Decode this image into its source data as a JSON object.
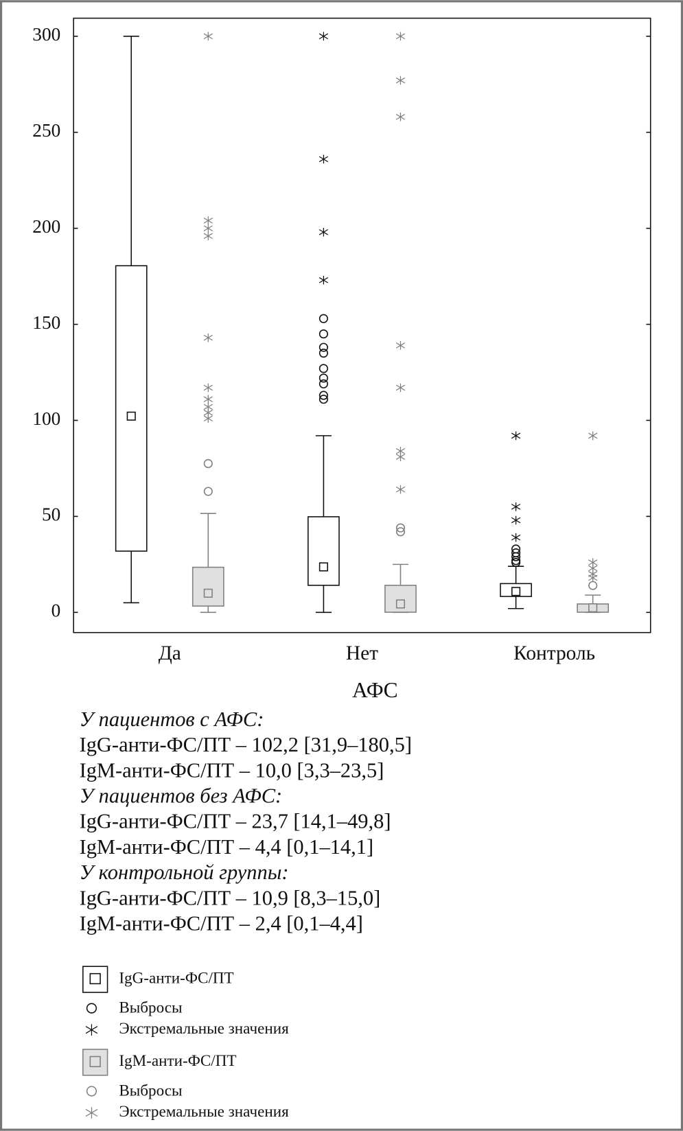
{
  "chart_data": {
    "type": "box",
    "x_label": "АФС",
    "categories": [
      "Да",
      "Нет",
      "Контроль"
    ],
    "ylim": [
      -10.5,
      309.4
    ],
    "yticks": [
      0,
      50,
      100,
      150,
      200,
      250,
      300
    ],
    "series": [
      {
        "name": "IgG-анти-ФС/ПТ",
        "color": "#111111",
        "fill": "#ffffff",
        "outlier_label": "Выбросы",
        "extreme_label": "Экстремальные значения",
        "boxes": [
          {
            "median": 102.2,
            "q1": 31.9,
            "q3": 180.5,
            "whisker_low": 5,
            "whisker_high": 300,
            "outliers": [],
            "extremes": []
          },
          {
            "median": 23.7,
            "q1": 14.1,
            "q3": 49.8,
            "whisker_low": 0,
            "whisker_high": 92,
            "outliers": [
              153,
              145,
              138,
              135,
              127,
              122,
              119,
              113,
              111
            ],
            "extremes": [
              300,
              236,
              198,
              173
            ]
          },
          {
            "median": 10.9,
            "q1": 8.3,
            "q3": 15.0,
            "whisker_low": 2,
            "whisker_high": 24,
            "outliers": [
              33,
              31,
              29,
              27,
              26
            ],
            "extremes": [
              92,
              55,
              48,
              39
            ]
          }
        ]
      },
      {
        "name": "IgM-анти-ФС/ПТ",
        "color": "#808080",
        "fill": "#e0e0e0",
        "outlier_label": "Выбросы",
        "extreme_label": "Экстремальные значения",
        "boxes": [
          {
            "median": 10.0,
            "q1": 3.3,
            "q3": 23.5,
            "whisker_low": 0,
            "whisker_high": 51.5,
            "outliers": [
              77.5,
              63
            ],
            "extremes": [
              300,
              204,
              200,
              196,
              143,
              117,
              111,
              107,
              104,
              101
            ]
          },
          {
            "median": 4.4,
            "q1": 0.1,
            "q3": 14.1,
            "whisker_low": 0,
            "whisker_high": 25,
            "outliers": [
              44,
              42
            ],
            "extremes": [
              300,
              277,
              258,
              139,
              117,
              84,
              81,
              64
            ]
          },
          {
            "median": 2.4,
            "q1": 0.1,
            "q3": 4.4,
            "whisker_low": 0,
            "whisker_high": 9,
            "outliers": [
              14
            ],
            "extremes": [
              92,
              26,
              23,
              20,
              18
            ]
          }
        ]
      }
    ],
    "summary": [
      {
        "heading": "У пациентов с АФС:",
        "lines": [
          "IgG-анти-ФС/ПТ – 102,2 [31,9–180,5]",
          "IgM-анти-ФС/ПТ – 10,0 [3,3–23,5]"
        ]
      },
      {
        "heading": "У пациентов без АФС:",
        "lines": [
          "IgG-анти-ФС/ПТ – 23,7 [14,1–49,8]",
          "IgM-анти-ФС/ПТ – 4,4 [0,1–14,1]"
        ]
      },
      {
        "heading": "У контрольной группы:",
        "lines": [
          "IgG-анти-ФС/ПТ – 10,9 [8,3–15,0]",
          "IgM-анти-ФС/ПТ – 2,4 [0,1–4,4]"
        ]
      }
    ]
  }
}
